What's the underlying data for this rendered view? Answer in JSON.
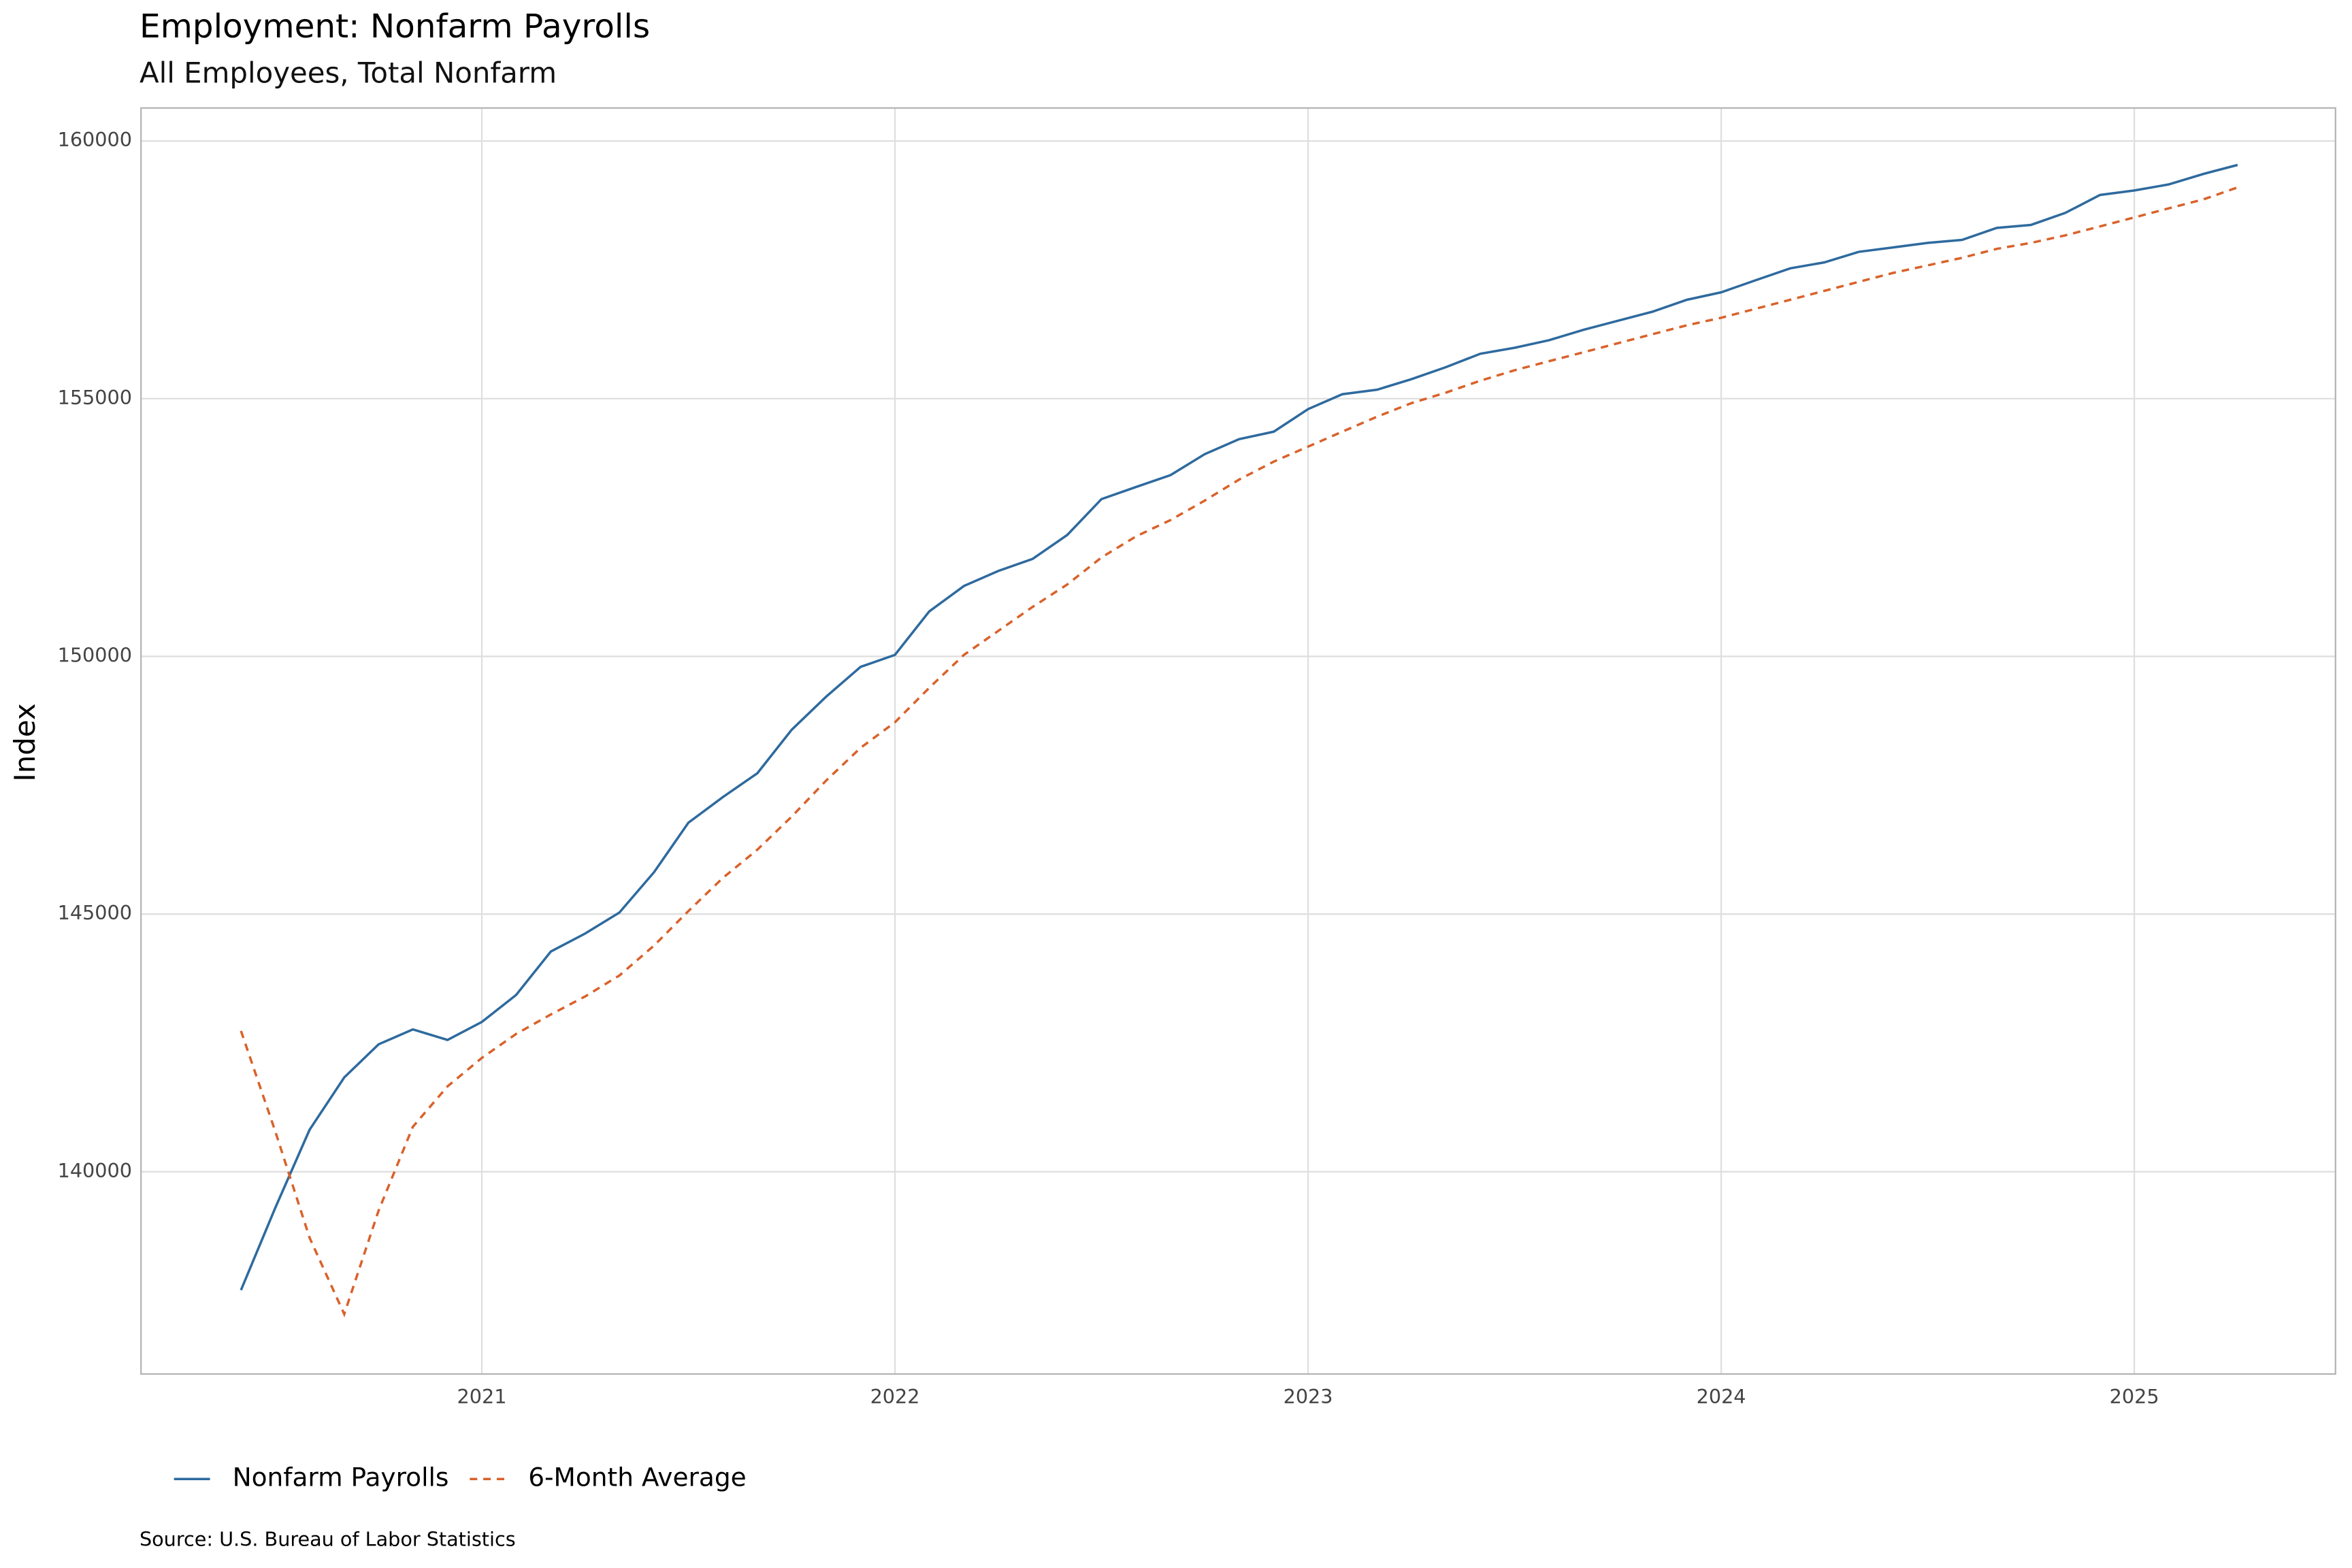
{
  "chart_data": {
    "type": "line",
    "title": "Employment: Nonfarm Payrolls",
    "subtitle": "All Employees, Total Nonfarm",
    "y_label": "Index",
    "source": "Source:  U.S. Bureau of Labor Statistics",
    "legend": "bottom",
    "grid": true,
    "x": [
      2020.417,
      2020.5,
      2020.583,
      2020.667,
      2020.75,
      2020.833,
      2020.917,
      2021,
      2021.083,
      2021.167,
      2021.25,
      2021.333,
      2021.417,
      2021.5,
      2021.583,
      2021.667,
      2021.75,
      2021.833,
      2021.917,
      2022,
      2022.083,
      2022.167,
      2022.25,
      2022.333,
      2022.417,
      2022.5,
      2022.583,
      2022.667,
      2022.75,
      2022.833,
      2022.917,
      2023,
      2023.083,
      2023.167,
      2023.25,
      2023.333,
      2023.417,
      2023.5,
      2023.583,
      2023.667,
      2023.75,
      2023.833,
      2023.917,
      2024,
      2024.083,
      2024.167,
      2024.25,
      2024.333,
      2024.417,
      2024.5,
      2024.583,
      2024.667,
      2024.75,
      2024.833,
      2024.917,
      2025,
      2025.083,
      2025.167,
      2025.25
    ],
    "series": [
      {
        "name": "Nonfarm Payrolls",
        "color": "#2e6a9e",
        "dash": false,
        "values": [
          137703,
          139300,
          140814,
          141831,
          142472,
          142762,
          142558,
          142907,
          143430,
          144273,
          144622,
          145029,
          145814,
          146773,
          147267,
          147733,
          148576,
          149215,
          149797,
          150029,
          150872,
          151366,
          151657,
          151890,
          152355,
          153052,
          153285,
          153517,
          153924,
          154215,
          154360,
          154797,
          155087,
          155174,
          155378,
          155610,
          155872,
          155988,
          156134,
          156337,
          156512,
          156686,
          156919,
          157064,
          157297,
          157529,
          157645,
          157849,
          157936,
          158023,
          158081,
          158314,
          158372,
          158605,
          158953,
          159040,
          159157,
          159360,
          159535
        ]
      },
      {
        "name": "6-Month Average",
        "color": "#d9622b",
        "dash": true,
        "values": [
          142733,
          140785,
          138721,
          137238,
          139244,
          140872,
          141657,
          142209,
          142674,
          143052,
          143401,
          143808,
          144390,
          145058,
          145698,
          146250,
          146890,
          147587,
          148227,
          148721,
          149390,
          150029,
          150494,
          150959,
          151395,
          151919,
          152326,
          152645,
          153023,
          153430,
          153779,
          154070,
          154360,
          154651,
          154913,
          155116,
          155349,
          155552,
          155727,
          155901,
          156076,
          156250,
          156424,
          156570,
          156744,
          156919,
          157093,
          157267,
          157442,
          157587,
          157733,
          157907,
          158023,
          158169,
          158343,
          158517,
          158692,
          158866,
          159099
        ]
      }
    ],
    "xlim": [
      2020.175,
      2025.487
    ],
    "xticks": [
      2021,
      2022,
      2023,
      2024,
      2025
    ],
    "ylim": [
      136076,
      160640
    ],
    "yticks": [
      140000,
      145000,
      150000,
      155000,
      160000
    ]
  }
}
